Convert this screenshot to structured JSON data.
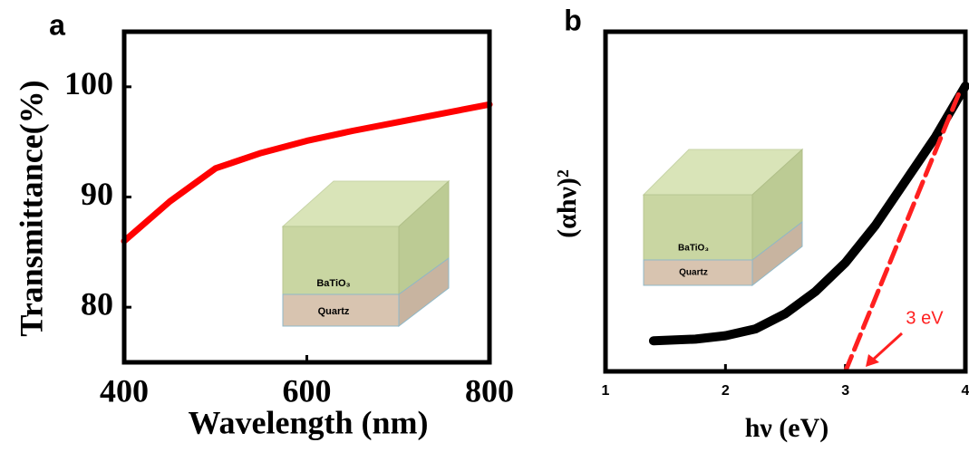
{
  "chart_data": [
    {
      "type": "line",
      "panel_label": "a",
      "x_label": "Wavelength (nm)",
      "y_label": "Transmittance(%)",
      "x": [
        400,
        450,
        500,
        550,
        600,
        650,
        700,
        750,
        800
      ],
      "series": [
        {
          "color": "#ff0000",
          "values": [
            86.0,
            89.6,
            92.6,
            94.0,
            95.1,
            96.0,
            96.8,
            97.6,
            98.4
          ]
        }
      ],
      "xlim": [
        400,
        800
      ],
      "ylim": [
        75,
        105
      ],
      "xticks": [
        400,
        600,
        800
      ],
      "yticks": [
        80,
        90,
        100
      ],
      "inset_labels": [
        "BaTiO₃",
        "Quartz"
      ]
    },
    {
      "type": "line",
      "panel_label": "b",
      "x_label": "hν (eV)",
      "y_label": "(αhν)²",
      "series": [
        {
          "color": "#000000",
          "x": [
            1.4,
            1.75,
            2,
            2.25,
            2.5,
            2.75,
            3,
            3.25,
            3.5,
            3.75,
            4
          ],
          "values": [
            0.09,
            0.095,
            0.105,
            0.125,
            0.17,
            0.235,
            0.32,
            0.43,
            0.56,
            0.69,
            0.84
          ]
        },
        {
          "color": "#ff2020",
          "linestyle": "dashed",
          "x": [
            3,
            3.96
          ],
          "values": [
            0,
            0.83
          ]
        }
      ],
      "xlim": [
        1,
        4
      ],
      "ylim": [
        0,
        1
      ],
      "xticks": [
        1,
        2,
        3,
        4
      ],
      "annotation": "3 eV",
      "inset_labels": [
        "BaTiO₃",
        "Quartz"
      ]
    }
  ]
}
